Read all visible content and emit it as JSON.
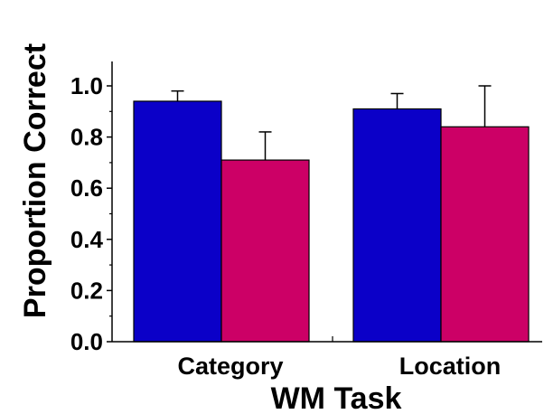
{
  "chart_data": {
    "type": "bar",
    "xlabel": "WM Task",
    "ylabel": "Proportion Correct",
    "categories": [
      "Category",
      "Location"
    ],
    "series": [
      {
        "values": [
          0.94,
          0.91
        ],
        "errors": [
          0.04,
          0.06
        ],
        "color": "#0b00c8"
      },
      {
        "values": [
          0.71,
          0.84
        ],
        "errors": [
          0.11,
          0.16
        ],
        "color": "#cc0066"
      }
    ],
    "ylim": [
      0.0,
      1.1
    ],
    "yticks": [
      "0.0",
      "0.2",
      "0.4",
      "0.6",
      "0.8",
      "1.0"
    ],
    "grid": false,
    "legend": "none"
  }
}
